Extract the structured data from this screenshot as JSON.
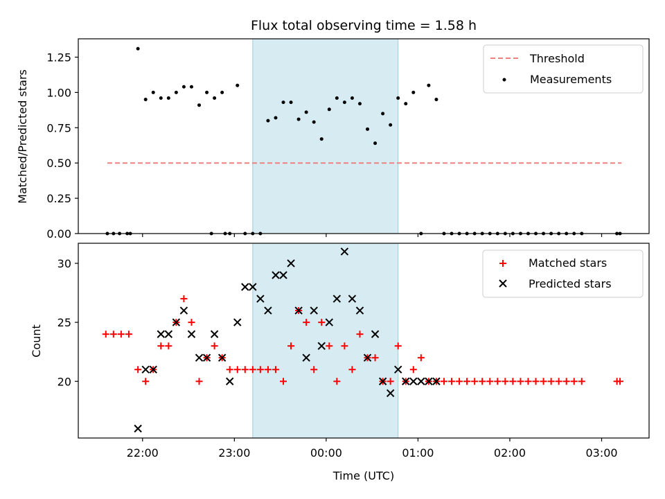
{
  "chart_data": [
    {
      "type": "scatter",
      "panel": "top",
      "title": "Flux total observing time = 1.58 h",
      "ylabel": "Matched/Predicted stars",
      "xlabel": "",
      "xlim": [
        "21:18",
        "03:31"
      ],
      "ylim": [
        0,
        1.38
      ],
      "yticks": [
        0,
        0.25,
        0.5,
        0.75,
        1.0,
        1.25
      ],
      "ytick_labels": [
        "0.00",
        "0.25",
        "0.50",
        "0.75",
        "1.00",
        "1.25"
      ],
      "xticks": [
        "22:00",
        "23:00",
        "00:00",
        "01:00",
        "02:00",
        "03:00"
      ],
      "shaded_span": [
        "23:12",
        "00:47"
      ],
      "legend_position": "top-right",
      "colors": {
        "threshold": "#f08080",
        "measurements": "#000000",
        "span": "#add8e6"
      },
      "series": [
        {
          "name": "Threshold",
          "style": "dashed-line",
          "x": [
            "21:37",
            "03:13"
          ],
          "y": [
            0.5,
            0.5
          ]
        },
        {
          "name": "Measurements",
          "style": "dots",
          "x": [
            "21:37",
            "21:41",
            "21:45",
            "21:50",
            "21:57",
            "22:02",
            "22:07",
            "22:12",
            "22:17",
            "22:22",
            "22:27",
            "22:32",
            "22:37",
            "22:42",
            "22:47",
            "22:52",
            "22:57",
            "23:02",
            "23:07",
            "23:12",
            "23:17",
            "23:22",
            "23:27",
            "23:32",
            "23:37",
            "23:42",
            "23:47",
            "23:52",
            "23:57",
            "00:02",
            "00:07",
            "00:12",
            "00:17",
            "00:22",
            "00:27",
            "00:32",
            "00:37",
            "00:42",
            "00:47",
            "00:52",
            "00:57",
            "01:02",
            "01:07",
            "01:12",
            "01:17",
            "01:22",
            "01:27",
            "01:32",
            "01:37",
            "01:42",
            "01:47",
            "01:52",
            "01:57",
            "02:02",
            "02:07",
            "02:12",
            "02:17",
            "02:22",
            "02:27",
            "02:32",
            "02:37",
            "02:42",
            "02:47",
            "03:10",
            "03:12",
            "21:52",
            "22:45",
            "22:54"
          ],
          "y": [
            0,
            0,
            0,
            0,
            1.31,
            0.95,
            1.0,
            0.96,
            0.96,
            1.0,
            1.04,
            1.04,
            0.91,
            1.0,
            0.96,
            1.0,
            0,
            1.05,
            0,
            0,
            0,
            0.8,
            0.82,
            0.93,
            0.93,
            0.81,
            0.86,
            0.79,
            0.67,
            0.88,
            0.96,
            0.93,
            0.96,
            0.92,
            0.74,
            0.64,
            0.85,
            0.77,
            0.96,
            0.92,
            1.0,
            0,
            1.05,
            0.95,
            0,
            0,
            0,
            0,
            0,
            0,
            0,
            0,
            0,
            0,
            0,
            0,
            0,
            0,
            0,
            0,
            0,
            0,
            0,
            0,
            0,
            0,
            0,
            0
          ]
        }
      ]
    },
    {
      "type": "scatter",
      "panel": "bottom",
      "title": "",
      "ylabel": "Count",
      "xlabel": "Time (UTC)",
      "xlim": [
        "21:18",
        "03:31"
      ],
      "ylim": [
        15.2,
        31.7
      ],
      "yticks": [
        20,
        25,
        30
      ],
      "ytick_labels": [
        "20",
        "25",
        "30"
      ],
      "xticks": [
        "22:00",
        "23:00",
        "00:00",
        "01:00",
        "02:00",
        "03:00"
      ],
      "shaded_span": [
        "23:12",
        "00:47"
      ],
      "legend_position": "top-right",
      "colors": {
        "matched": "#ff0000",
        "predicted": "#000000",
        "span": "#add8e6"
      },
      "series": [
        {
          "name": "Matched stars",
          "marker": "plus",
          "x": [
            "21:36",
            "21:41",
            "21:46",
            "21:51",
            "21:57",
            "22:02",
            "22:07",
            "22:12",
            "22:17",
            "22:22",
            "22:27",
            "22:32",
            "22:37",
            "22:42",
            "22:47",
            "22:52",
            "22:57",
            "23:02",
            "23:07",
            "23:12",
            "23:17",
            "23:22",
            "23:27",
            "23:32",
            "23:37",
            "23:42",
            "23:47",
            "23:52",
            "23:57",
            "00:02",
            "00:07",
            "00:12",
            "00:17",
            "00:22",
            "00:27",
            "00:32",
            "00:37",
            "00:42",
            "00:47",
            "00:52",
            "00:57",
            "01:02",
            "01:07",
            "01:12",
            "01:17",
            "01:22",
            "01:27",
            "01:32",
            "01:37",
            "01:42",
            "01:47",
            "01:52",
            "01:57",
            "02:02",
            "02:07",
            "02:12",
            "02:17",
            "02:22",
            "02:27",
            "02:32",
            "02:37",
            "02:42",
            "02:47",
            "03:10",
            "03:12"
          ],
          "y": [
            24,
            24,
            24,
            24,
            21,
            20,
            21,
            23,
            23,
            25,
            27,
            25,
            20,
            22,
            23,
            22,
            21,
            21,
            21,
            21,
            21,
            21,
            21,
            20,
            23,
            26,
            25,
            21,
            25,
            23,
            20,
            23,
            21,
            24,
            22,
            22,
            20,
            20,
            23,
            20,
            21,
            22,
            20,
            20,
            20,
            20,
            20,
            20,
            20,
            20,
            20,
            20,
            20,
            20,
            20,
            20,
            20,
            20,
            20,
            20,
            20,
            20,
            20,
            20,
            20
          ]
        },
        {
          "name": "Predicted stars",
          "marker": "x",
          "x": [
            "21:57",
            "22:02",
            "22:07",
            "22:12",
            "22:17",
            "22:22",
            "22:27",
            "22:32",
            "22:37",
            "22:42",
            "22:47",
            "22:52",
            "22:57",
            "23:02",
            "23:07",
            "23:12",
            "23:17",
            "23:22",
            "23:27",
            "23:32",
            "23:37",
            "23:42",
            "23:47",
            "23:52",
            "23:57",
            "00:02",
            "00:07",
            "00:12",
            "00:17",
            "00:22",
            "00:27",
            "00:32",
            "00:37",
            "00:42",
            "00:47",
            "00:52",
            "00:57",
            "01:02",
            "01:07",
            "01:12"
          ],
          "y": [
            16,
            21,
            21,
            24,
            24,
            25,
            26,
            24,
            22,
            22,
            24,
            22,
            20,
            25,
            28,
            28,
            27,
            26,
            29,
            29,
            30,
            26,
            22,
            26,
            23,
            25,
            27,
            31,
            27,
            26,
            22,
            24,
            20,
            19,
            21,
            20,
            20,
            20,
            20,
            20
          ]
        }
      ]
    }
  ]
}
